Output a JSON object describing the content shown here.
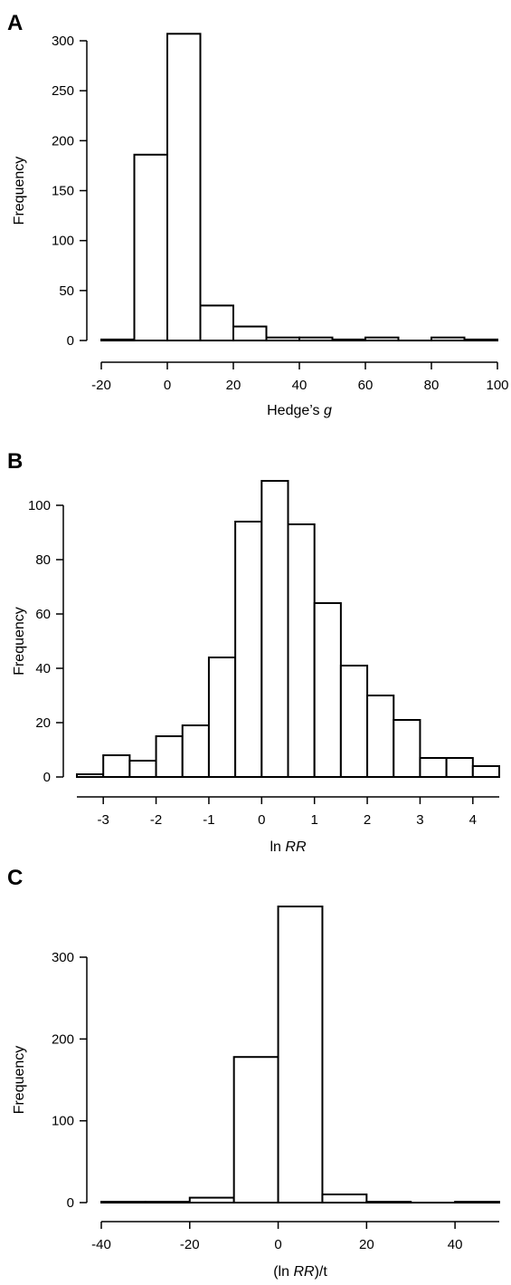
{
  "chart_data": [
    {
      "type": "bar",
      "panel_label": "A",
      "xlabel_prefix": "Hedge’s ",
      "xlabel_italic": "g",
      "xlabel_suffix": "",
      "ylabel": "Frequency",
      "bin_edges": [
        -20,
        -10,
        0,
        10,
        20,
        30,
        40,
        50,
        60,
        70,
        80,
        90,
        100
      ],
      "values": [
        1,
        186,
        307,
        35,
        14,
        3,
        3,
        1,
        3,
        0,
        3,
        1
      ],
      "xlim": [
        -20,
        100
      ],
      "ylim": [
        0,
        310
      ],
      "xticks": [
        -20,
        0,
        20,
        40,
        60,
        80,
        100
      ],
      "yticks": [
        0,
        50,
        100,
        150,
        200,
        250,
        300
      ],
      "xtick_labels": [
        "-20",
        "0",
        "20",
        "40",
        "60",
        "80",
        "100"
      ],
      "ytick_labels": [
        "0",
        "50",
        "100",
        "150",
        "200",
        "250",
        "300"
      ]
    },
    {
      "type": "bar",
      "panel_label": "B",
      "xlabel_prefix": "ln ",
      "xlabel_italic": "RR",
      "xlabel_suffix": "",
      "ylabel": "Frequency",
      "bin_edges": [
        -3.5,
        -3,
        -2.5,
        -2,
        -1.5,
        -1,
        -0.5,
        0,
        0.5,
        1,
        1.5,
        2,
        2.5,
        3,
        3.5,
        4,
        4.5
      ],
      "values": [
        1,
        8,
        6,
        15,
        19,
        44,
        94,
        109,
        93,
        64,
        41,
        30,
        21,
        7,
        7,
        4
      ],
      "xlim": [
        -3.5,
        4.5
      ],
      "ylim": [
        0,
        110
      ],
      "xticks": [
        -3,
        -2,
        -1,
        0,
        1,
        2,
        3,
        4
      ],
      "yticks": [
        0,
        20,
        40,
        60,
        80,
        100
      ],
      "xtick_labels": [
        "-3",
        "-2",
        "-1",
        "0",
        "1",
        "2",
        "3",
        "4"
      ],
      "ytick_labels": [
        "0",
        "20",
        "40",
        "60",
        "80",
        "100"
      ]
    },
    {
      "type": "bar",
      "panel_label": "C",
      "xlabel_prefix": "(ln ",
      "xlabel_italic": "RR",
      "xlabel_suffix": ")/t",
      "ylabel": "Frequency",
      "bin_edges": [
        -40,
        -30,
        -20,
        -10,
        0,
        10,
        20,
        30,
        40,
        50
      ],
      "values": [
        1,
        1,
        6,
        178,
        362,
        10,
        1,
        0,
        1
      ],
      "xlim": [
        -40,
        50
      ],
      "ylim": [
        0,
        362
      ],
      "xticks": [
        -40,
        -20,
        0,
        20,
        40
      ],
      "yticks": [
        0,
        100,
        200,
        300
      ],
      "xtick_labels": [
        "-40",
        "-20",
        "0",
        "20",
        "40"
      ],
      "ytick_labels": [
        "0",
        "100",
        "200",
        "300"
      ]
    }
  ]
}
